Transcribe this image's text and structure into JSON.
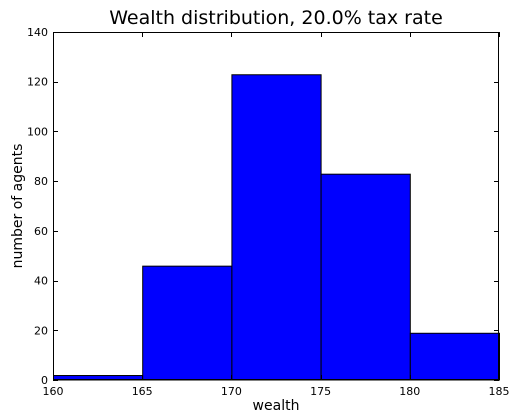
{
  "chart_data": {
    "type": "bar",
    "title": "Wealth distribution, 20.0% tax rate",
    "xlabel": "wealth",
    "ylabel": "number of agents",
    "bins": [
      {
        "x0": 160,
        "x1": 165,
        "value": 2
      },
      {
        "x0": 165,
        "x1": 170,
        "value": 46
      },
      {
        "x0": 170,
        "x1": 175,
        "value": 123
      },
      {
        "x0": 175,
        "x1": 180,
        "value": 83
      },
      {
        "x0": 180,
        "x1": 185,
        "value": 19
      }
    ],
    "xlim": [
      160,
      185
    ],
    "ylim": [
      0,
      140
    ],
    "xticks": [
      "160",
      "165",
      "170",
      "175",
      "180",
      "185"
    ],
    "yticks": [
      "0",
      "20",
      "40",
      "60",
      "80",
      "100",
      "120",
      "140"
    ],
    "bar_color": "#0000ff",
    "edge_color": "#000000",
    "grid": false,
    "legend": "none"
  }
}
